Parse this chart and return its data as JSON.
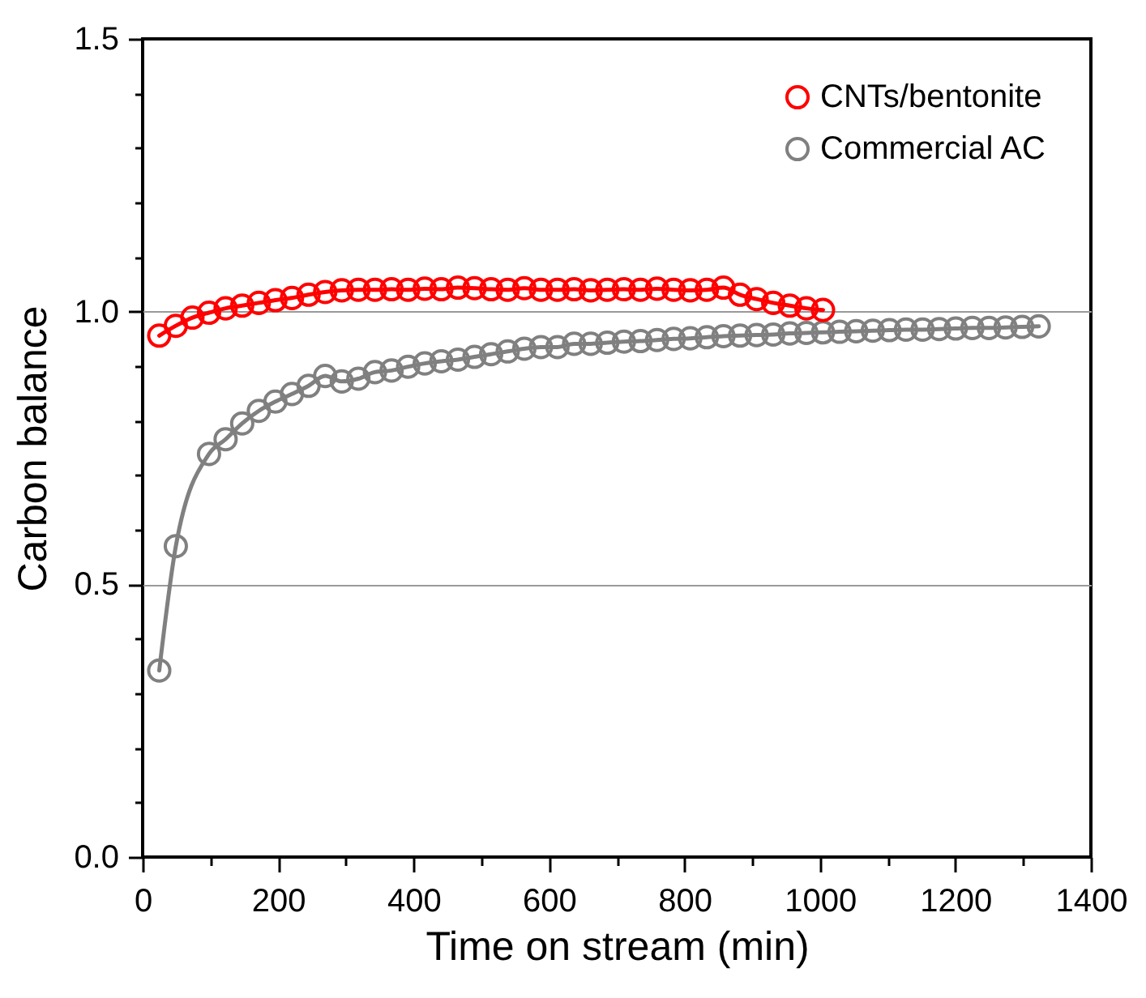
{
  "chart_data": {
    "type": "line",
    "xlabel": "Time on stream (min)",
    "ylabel": "Carbon balance",
    "xlim": [
      0,
      1400
    ],
    "ylim": [
      0,
      1.5
    ],
    "xticks": [
      0,
      {
        "value": 100,
        "label": null
      },
      200,
      {
        "value": 300,
        "label": null
      },
      400,
      {
        "value": 500,
        "label": null
      },
      600,
      {
        "value": 700,
        "label": null
      },
      800,
      {
        "value": 900,
        "label": null
      },
      1000,
      {
        "value": 1100,
        "label": null
      },
      1200,
      {
        "value": 1300,
        "label": null
      },
      1400
    ],
    "yticks": [
      {
        "value": 0,
        "label": "0.0"
      },
      {
        "value": 0.1,
        "label": null
      },
      {
        "value": 0.2,
        "label": null
      },
      {
        "value": 0.3,
        "label": null
      },
      {
        "value": 0.4,
        "label": null
      },
      0.5,
      {
        "value": 0.6,
        "label": null
      },
      {
        "value": 0.7,
        "label": null
      },
      {
        "value": 0.8,
        "label": null
      },
      {
        "value": 0.9,
        "label": null
      },
      {
        "value": 1,
        "label": "1.0"
      },
      {
        "value": 1.1,
        "label": null
      },
      {
        "value": 1.2,
        "label": null
      },
      {
        "value": 1.3,
        "label": null
      },
      {
        "value": 1.4,
        "label": null
      },
      1.5
    ],
    "grid": "y",
    "legend": "top right",
    "marker": "circle",
    "line_style": "solid",
    "series": [
      {
        "name": "CNTs/bentonite",
        "color": "#ff0000",
        "x": [
          24.5,
          49,
          73.5,
          98,
          122.5,
          147,
          171.5,
          196,
          220.5,
          245,
          269.5,
          294,
          318.5,
          343,
          367.5,
          392,
          416.5,
          441,
          465.5,
          490,
          514.5,
          539,
          563.5,
          588,
          612.5,
          637,
          661.5,
          686,
          710.5,
          735,
          759.5,
          784,
          808.5,
          833,
          857.5,
          882,
          906.5,
          931,
          955.5,
          980,
          1004.5
        ],
        "values": [
          0.956,
          0.974,
          0.989,
          0.998,
          1.006,
          1.011,
          1.016,
          1.021,
          1.025,
          1.031,
          1.036,
          1.039,
          1.04,
          1.04,
          1.041,
          1.04,
          1.042,
          1.041,
          1.044,
          1.043,
          1.041,
          1.04,
          1.043,
          1.04,
          1.04,
          1.041,
          1.039,
          1.04,
          1.041,
          1.04,
          1.042,
          1.04,
          1.039,
          1.04,
          1.044,
          1.031,
          1.023,
          1.016,
          1.011,
          1.006,
          1.003
        ]
      },
      {
        "name": "Commercial AC",
        "color": "#808080",
        "x": [
          24.5,
          49,
          98,
          122.5,
          147,
          171.5,
          196,
          220.5,
          245,
          269.5,
          294,
          318.5,
          343,
          367.5,
          392,
          416.5,
          441,
          465.5,
          490,
          514.5,
          539,
          563.5,
          588,
          612.5,
          637,
          661.5,
          686,
          710.5,
          735,
          759.5,
          784,
          808.5,
          833,
          857.5,
          882,
          906.5,
          931,
          955.5,
          980,
          1004.5,
          1029,
          1053.5,
          1078,
          1102.5,
          1127,
          1151.5,
          1176,
          1200.5,
          1225,
          1249.5,
          1274,
          1298.5,
          1323
        ],
        "values": [
          0.342,
          0.57,
          0.739,
          0.766,
          0.795,
          0.818,
          0.835,
          0.849,
          0.864,
          0.882,
          0.872,
          0.877,
          0.889,
          0.892,
          0.899,
          0.905,
          0.909,
          0.912,
          0.917,
          0.922,
          0.927,
          0.932,
          0.935,
          0.935,
          0.941,
          0.941,
          0.943,
          0.945,
          0.946,
          0.948,
          0.95,
          0.951,
          0.953,
          0.955,
          0.956,
          0.957,
          0.958,
          0.96,
          0.961,
          0.962,
          0.963,
          0.964,
          0.965,
          0.966,
          0.967,
          0.967,
          0.968,
          0.969,
          0.97,
          0.97,
          0.971,
          0.972,
          0.973
        ]
      }
    ]
  }
}
